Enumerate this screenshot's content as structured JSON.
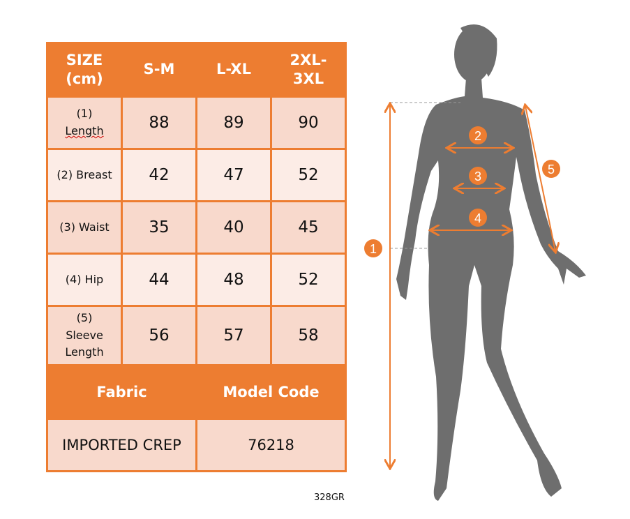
{
  "table": {
    "header": [
      "SIZE (cm)",
      "S-M",
      "L-XL",
      "2XL-3XL"
    ],
    "header_lines": [
      [
        "SIZE",
        "(cm)"
      ],
      "S-M",
      "L-XL",
      [
        "2XL-",
        "3XL"
      ]
    ],
    "rows": [
      {
        "label": [
          "(1)",
          "Length"
        ],
        "values": [
          "88",
          "89",
          "90"
        ]
      },
      {
        "label": [
          "(2) Breast"
        ],
        "values": [
          "42",
          "47",
          "52"
        ]
      },
      {
        "label": [
          "(3) Waist"
        ],
        "values": [
          "35",
          "40",
          "45"
        ]
      },
      {
        "label": [
          "(4) Hip"
        ],
        "values": [
          "44",
          "48",
          "52"
        ]
      },
      {
        "label": [
          "(5)",
          "Sleeve",
          "Length"
        ],
        "values": [
          "56",
          "57",
          "58"
        ]
      }
    ],
    "fabric_header": "Fabric",
    "model_code_header": "Model Code",
    "fabric": "IMPORTED CREP",
    "model_code": "76218"
  },
  "product_code": "328GR",
  "markers": [
    "1",
    "2",
    "3",
    "4",
    "5"
  ],
  "colors": {
    "accent": "#ED7D31",
    "row_dark": "#F8D9CC",
    "row_light": "#FCECE6",
    "silhouette": "#6E6E6E"
  }
}
